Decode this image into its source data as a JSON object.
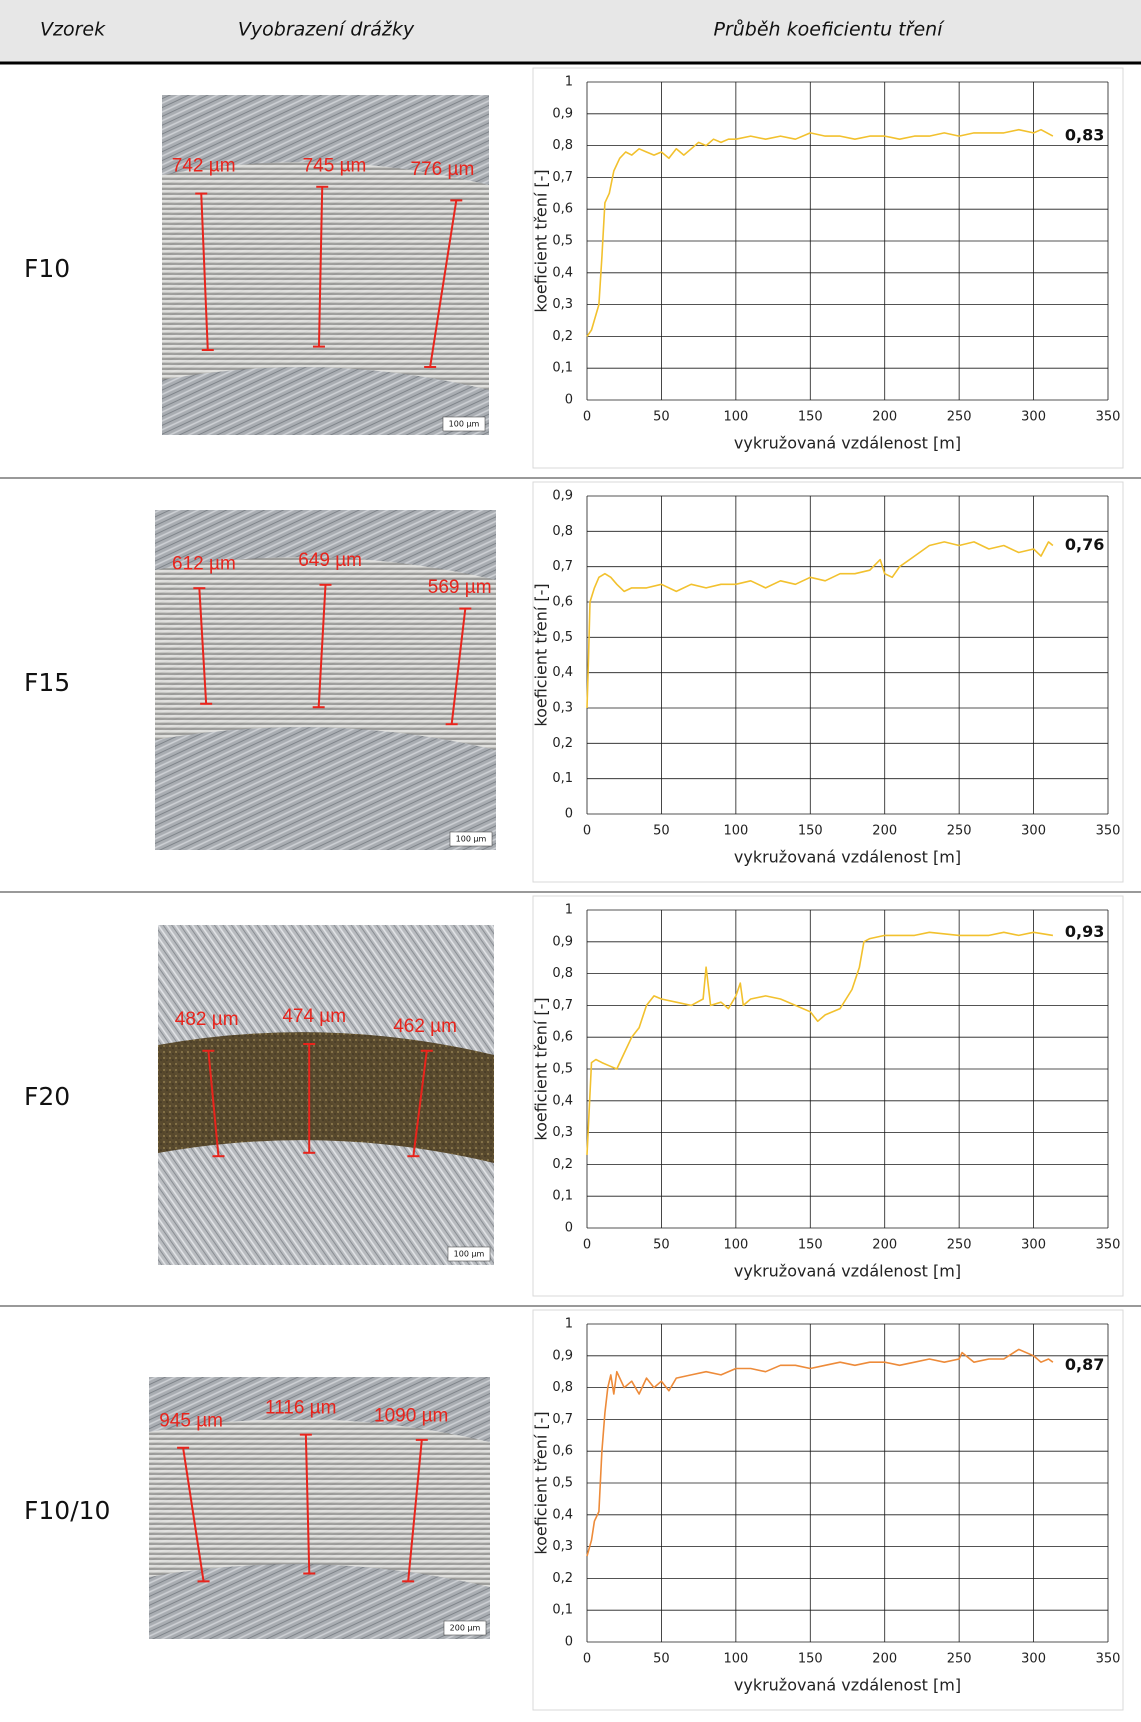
{
  "table": {
    "header": [
      "Vzorek",
      "Vyobrazení drážky",
      "Průběh koeficientu tření"
    ],
    "rows": [
      {
        "sample": "F10",
        "measurements": [
          "742 µm",
          "745 µm",
          "776 µm"
        ],
        "scale_bar": "100 µm"
      },
      {
        "sample": "F15",
        "measurements": [
          "612 µm",
          "649 µm",
          "569 µm"
        ],
        "scale_bar": "100 µm"
      },
      {
        "sample": "F20",
        "measurements": [
          "482 µm",
          "474 µm",
          "462 µm"
        ],
        "scale_bar": "100 µm"
      },
      {
        "sample": "F10/10",
        "measurements": [
          "945 µm",
          "1116 µm",
          "1090 µm"
        ],
        "scale_bar": "200 µm"
      }
    ]
  },
  "chart_data": [
    {
      "type": "line",
      "x_label": "vykružovaná vzdálenost [m]",
      "y_label": "koeficient tření [-]",
      "grid": true,
      "color": "#f2c12e",
      "xlim": [
        0,
        350
      ],
      "ylim": [
        0,
        1
      ],
      "xticks": [
        0,
        50,
        100,
        150,
        200,
        250,
        300,
        350
      ],
      "yticks": [
        0,
        {
          "value": 0.1,
          "label": "0,1"
        },
        {
          "value": 0.2,
          "label": "0,2"
        },
        {
          "value": 0.3,
          "label": "0,3"
        },
        {
          "value": 0.4,
          "label": "0,4"
        },
        {
          "value": 0.5,
          "label": "0,5"
        },
        {
          "value": 0.6,
          "label": "0,6"
        },
        {
          "value": 0.7,
          "label": "0,7"
        },
        {
          "value": 0.8,
          "label": "0,8"
        },
        {
          "value": 0.9,
          "label": "0,9"
        },
        1
      ],
      "x": [
        0,
        3,
        8,
        10,
        12,
        15,
        18,
        22,
        26,
        30,
        35,
        40,
        45,
        50,
        55,
        60,
        65,
        70,
        75,
        80,
        85,
        90,
        95,
        100,
        110,
        120,
        130,
        140,
        150,
        160,
        170,
        180,
        190,
        200,
        210,
        220,
        230,
        240,
        250,
        260,
        270,
        280,
        290,
        300,
        305,
        313
      ],
      "values": [
        0.2,
        0.22,
        0.3,
        0.45,
        0.62,
        0.65,
        0.72,
        0.76,
        0.78,
        0.77,
        0.79,
        0.78,
        0.77,
        0.78,
        0.76,
        0.79,
        0.77,
        0.79,
        0.81,
        0.8,
        0.82,
        0.81,
        0.82,
        0.82,
        0.83,
        0.82,
        0.83,
        0.82,
        0.84,
        0.83,
        0.83,
        0.82,
        0.83,
        0.83,
        0.82,
        0.83,
        0.83,
        0.84,
        0.83,
        0.84,
        0.84,
        0.84,
        0.85,
        0.84,
        0.85,
        0.83
      ],
      "end_label": {
        "value": 0.83,
        "label": "0,83"
      }
    },
    {
      "type": "line",
      "x_label": "vykružovaná vzdálenost [m]",
      "y_label": "koeficient tření [-]",
      "grid": true,
      "color": "#f2c12e",
      "xlim": [
        0,
        350
      ],
      "ylim": [
        0,
        0.9
      ],
      "xticks": [
        0,
        50,
        100,
        150,
        200,
        250,
        300,
        350
      ],
      "yticks": [
        0,
        {
          "value": 0.1,
          "label": "0,1"
        },
        {
          "value": 0.2,
          "label": "0,2"
        },
        {
          "value": 0.3,
          "label": "0,3"
        },
        {
          "value": 0.4,
          "label": "0,4"
        },
        {
          "value": 0.5,
          "label": "0,5"
        },
        {
          "value": 0.6,
          "label": "0,6"
        },
        {
          "value": 0.7,
          "label": "0,7"
        },
        {
          "value": 0.8,
          "label": "0,8"
        },
        {
          "value": 0.9,
          "label": "0,9"
        }
      ],
      "x": [
        0,
        1,
        2,
        5,
        8,
        12,
        16,
        20,
        25,
        30,
        40,
        50,
        60,
        70,
        80,
        90,
        100,
        110,
        120,
        130,
        140,
        150,
        160,
        170,
        180,
        190,
        197,
        200,
        205,
        210,
        220,
        230,
        240,
        250,
        260,
        270,
        280,
        290,
        300,
        305,
        310,
        313
      ],
      "values": [
        0.3,
        0.44,
        0.6,
        0.64,
        0.67,
        0.68,
        0.67,
        0.65,
        0.63,
        0.64,
        0.64,
        0.65,
        0.63,
        0.65,
        0.64,
        0.65,
        0.65,
        0.66,
        0.64,
        0.66,
        0.65,
        0.67,
        0.66,
        0.68,
        0.68,
        0.69,
        0.72,
        0.68,
        0.67,
        0.7,
        0.73,
        0.76,
        0.77,
        0.76,
        0.77,
        0.75,
        0.76,
        0.74,
        0.75,
        0.73,
        0.77,
        0.76
      ],
      "end_label": {
        "value": 0.76,
        "label": "0,76"
      }
    },
    {
      "type": "line",
      "x_label": "vykružovaná vzdálenost [m]",
      "y_label": "koeficient tření [-]",
      "grid": true,
      "color": "#f2c12e",
      "xlim": [
        0,
        350
      ],
      "ylim": [
        0,
        1
      ],
      "xticks": [
        0,
        50,
        100,
        150,
        200,
        250,
        300,
        350
      ],
      "yticks": [
        0,
        {
          "value": 0.1,
          "label": "0,1"
        },
        {
          "value": 0.2,
          "label": "0,2"
        },
        {
          "value": 0.3,
          "label": "0,3"
        },
        {
          "value": 0.4,
          "label": "0,4"
        },
        {
          "value": 0.5,
          "label": "0,5"
        },
        {
          "value": 0.6,
          "label": "0,6"
        },
        {
          "value": 0.7,
          "label": "0,7"
        },
        {
          "value": 0.8,
          "label": "0,8"
        },
        {
          "value": 0.9,
          "label": "0,9"
        },
        1
      ],
      "x": [
        0,
        3,
        6,
        10,
        15,
        20,
        25,
        30,
        35,
        40,
        45,
        50,
        60,
        70,
        78,
        80,
        83,
        90,
        95,
        100,
        103,
        105,
        110,
        120,
        130,
        140,
        150,
        155,
        160,
        170,
        178,
        183,
        186,
        190,
        200,
        220,
        230,
        250,
        270,
        280,
        290,
        300,
        313
      ],
      "values": [
        0.23,
        0.52,
        0.53,
        0.52,
        0.51,
        0.5,
        0.55,
        0.6,
        0.63,
        0.7,
        0.73,
        0.72,
        0.71,
        0.7,
        0.72,
        0.82,
        0.7,
        0.71,
        0.69,
        0.73,
        0.77,
        0.7,
        0.72,
        0.73,
        0.72,
        0.7,
        0.68,
        0.65,
        0.67,
        0.69,
        0.75,
        0.82,
        0.9,
        0.91,
        0.92,
        0.92,
        0.93,
        0.92,
        0.92,
        0.93,
        0.92,
        0.93,
        0.92
      ],
      "end_label": {
        "value": 0.93,
        "label": "0,93"
      }
    },
    {
      "type": "line",
      "x_label": "vykružovaná vzdálenost [m]",
      "y_label": "koeficient tření [-]",
      "grid": true,
      "color": "#ed8b3a",
      "xlim": [
        0,
        350
      ],
      "ylim": [
        0,
        1
      ],
      "xticks": [
        0,
        50,
        100,
        150,
        200,
        250,
        300,
        350
      ],
      "yticks": [
        0,
        {
          "value": 0.1,
          "label": "0,1"
        },
        {
          "value": 0.2,
          "label": "0,2"
        },
        {
          "value": 0.3,
          "label": "0,3"
        },
        {
          "value": 0.4,
          "label": "0,4"
        },
        {
          "value": 0.5,
          "label": "0,5"
        },
        {
          "value": 0.6,
          "label": "0,6"
        },
        {
          "value": 0.7,
          "label": "0,7"
        },
        {
          "value": 0.8,
          "label": "0,8"
        },
        {
          "value": 0.9,
          "label": "0,9"
        },
        1
      ],
      "x": [
        0,
        3,
        5,
        8,
        10,
        12,
        14,
        16,
        18,
        20,
        25,
        30,
        35,
        40,
        45,
        50,
        55,
        60,
        70,
        80,
        90,
        100,
        110,
        120,
        130,
        140,
        150,
        160,
        170,
        180,
        190,
        200,
        210,
        220,
        230,
        240,
        250,
        252,
        260,
        270,
        280,
        290,
        300,
        305,
        310,
        313
      ],
      "values": [
        0.27,
        0.32,
        0.38,
        0.41,
        0.6,
        0.72,
        0.8,
        0.84,
        0.78,
        0.85,
        0.8,
        0.82,
        0.78,
        0.83,
        0.8,
        0.82,
        0.79,
        0.83,
        0.84,
        0.85,
        0.84,
        0.86,
        0.86,
        0.85,
        0.87,
        0.87,
        0.86,
        0.87,
        0.88,
        0.87,
        0.88,
        0.88,
        0.87,
        0.88,
        0.89,
        0.88,
        0.89,
        0.91,
        0.88,
        0.89,
        0.89,
        0.92,
        0.9,
        0.88,
        0.89,
        0.88
      ],
      "end_label": {
        "value": 0.87,
        "label": "0,87"
      }
    }
  ]
}
